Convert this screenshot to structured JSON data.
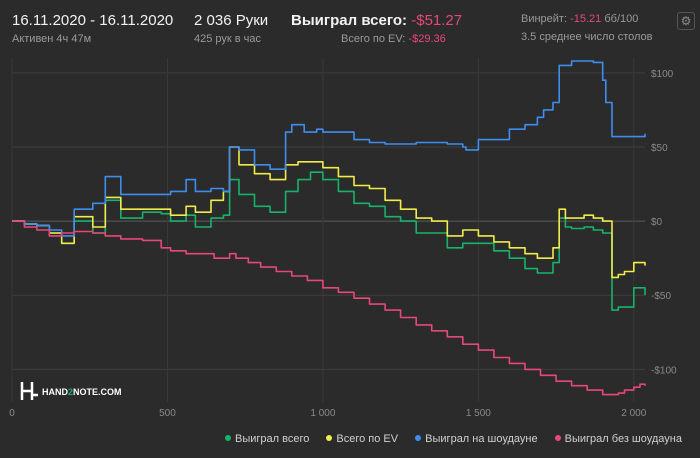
{
  "header": {
    "date_range": "16.11.2020 - 16.11.2020",
    "active": "Активен 4ч 47м",
    "hands": "2 036 Руки",
    "hands_per_hour": "425 рук в час",
    "won_total_label": "Выиграл всего:",
    "won_total_value": "-$51.27",
    "ev_total_label": "Всего по EV:",
    "ev_total_value": "-$29.36",
    "winrate_label": "Винрейт:",
    "winrate_value": "-15.21",
    "winrate_unit": "бб/100",
    "avg_tables": "3.5 среднее число столов"
  },
  "colors": {
    "won": "#17b36b",
    "ev": "#f0ec4a",
    "showdown": "#3d8ef0",
    "no_showdown": "#e8477a",
    "negative": "#e8477a"
  },
  "icons": {
    "settings": "gear-icon",
    "logo": "hand2note-logo"
  },
  "logo": {
    "text_a": "HAND",
    "text_b": "2",
    "text_c": "NOTE.COM"
  },
  "chart_data": {
    "type": "line",
    "x_ticks": [
      0,
      500,
      1000,
      1500,
      2000
    ],
    "x_tick_labels": [
      "0",
      "500",
      "1 000",
      "1 500",
      "2 000"
    ],
    "y_ticks": [
      100,
      50,
      0,
      -50,
      -100
    ],
    "y_tick_labels": [
      "$100",
      "$50",
      "$0",
      "-$50",
      "-$100"
    ],
    "xlim": [
      0,
      2036
    ],
    "ylim": [
      -122,
      110
    ],
    "grid": true,
    "legend_position": "bottom",
    "series": [
      {
        "name": "Выиграл всего",
        "color": "#17b36b",
        "x": [
          0,
          40,
          80,
          120,
          160,
          200,
          260,
          300,
          350,
          420,
          480,
          510,
          560,
          590,
          640,
          680,
          700,
          730,
          780,
          830,
          850,
          880,
          920,
          960,
          1000,
          1050,
          1100,
          1150,
          1200,
          1250,
          1300,
          1350,
          1400,
          1450,
          1500,
          1550,
          1600,
          1650,
          1690,
          1710,
          1740,
          1760,
          1780,
          1800,
          1840,
          1870,
          1900,
          1930,
          1950,
          1970,
          2000,
          2036
        ],
        "y": [
          0,
          -2,
          -3,
          -8,
          -15,
          0,
          -8,
          14,
          2,
          6,
          5,
          0,
          4,
          -4,
          2,
          4,
          28,
          18,
          10,
          6,
          6,
          20,
          28,
          33,
          28,
          20,
          12,
          10,
          3,
          0,
          -8,
          -8,
          -18,
          -15,
          -15,
          -20,
          -25,
          -32,
          -35,
          -35,
          -28,
          2,
          -4,
          -5,
          -4,
          -6,
          -8,
          -60,
          -58,
          -58,
          -45,
          -50
        ]
      },
      {
        "name": "Всего по EV",
        "color": "#f0ec4a",
        "x": [
          0,
          40,
          80,
          120,
          160,
          200,
          260,
          300,
          350,
          420,
          480,
          510,
          560,
          590,
          640,
          680,
          700,
          730,
          780,
          830,
          850,
          880,
          920,
          960,
          1000,
          1050,
          1100,
          1150,
          1200,
          1250,
          1300,
          1350,
          1400,
          1450,
          1500,
          1550,
          1600,
          1650,
          1690,
          1710,
          1740,
          1760,
          1780,
          1800,
          1840,
          1870,
          1900,
          1930,
          1950,
          1970,
          2000,
          2036
        ],
        "y": [
          0,
          -2,
          -3,
          -8,
          -15,
          3,
          -4,
          16,
          8,
          8,
          8,
          4,
          10,
          6,
          14,
          20,
          50,
          38,
          32,
          28,
          28,
          38,
          40,
          40,
          36,
          30,
          24,
          22,
          14,
          8,
          2,
          0,
          -10,
          -6,
          -10,
          -14,
          -18,
          -22,
          -25,
          -25,
          -18,
          8,
          2,
          2,
          4,
          2,
          0,
          -38,
          -36,
          -34,
          -28,
          -30
        ]
      },
      {
        "name": "Выиграл на шоудауне",
        "color": "#3d8ef0",
        "x": [
          0,
          40,
          80,
          120,
          160,
          200,
          260,
          300,
          350,
          420,
          480,
          510,
          560,
          590,
          640,
          680,
          700,
          730,
          780,
          830,
          850,
          880,
          900,
          940,
          980,
          1000,
          1100,
          1150,
          1200,
          1300,
          1400,
          1450,
          1460,
          1500,
          1600,
          1650,
          1690,
          1710,
          1740,
          1760,
          1800,
          1840,
          1870,
          1900,
          1910,
          1930,
          2000,
          2036
        ],
        "y": [
          0,
          -2,
          -3,
          -6,
          -10,
          8,
          12,
          30,
          18,
          18,
          18,
          20,
          28,
          20,
          22,
          20,
          50,
          48,
          38,
          35,
          35,
          60,
          65,
          60,
          62,
          60,
          55,
          53,
          52,
          53,
          52,
          50,
          48,
          55,
          62,
          65,
          70,
          75,
          80,
          105,
          108,
          108,
          107,
          95,
          80,
          57,
          57,
          59
        ]
      },
      {
        "name": "Выиграл без шоудауна",
        "color": "#e8477a",
        "x": [
          0,
          40,
          80,
          120,
          160,
          200,
          260,
          300,
          350,
          420,
          480,
          510,
          560,
          600,
          650,
          700,
          720,
          760,
          800,
          850,
          900,
          950,
          1000,
          1050,
          1100,
          1150,
          1200,
          1250,
          1300,
          1350,
          1400,
          1450,
          1500,
          1550,
          1600,
          1650,
          1700,
          1750,
          1800,
          1850,
          1900,
          1950,
          1970,
          2000,
          2020,
          2036
        ],
        "y": [
          0,
          -4,
          -6,
          -10,
          -8,
          -7,
          -8,
          -10,
          -12,
          -13,
          -18,
          -20,
          -22,
          -22,
          -25,
          -22,
          -25,
          -28,
          -31,
          -34,
          -37,
          -40,
          -45,
          -48,
          -52,
          -56,
          -60,
          -65,
          -70,
          -74,
          -78,
          -83,
          -87,
          -92,
          -96,
          -100,
          -104,
          -108,
          -111,
          -114,
          -117,
          -116,
          -114,
          -112,
          -110,
          -111
        ]
      }
    ]
  }
}
